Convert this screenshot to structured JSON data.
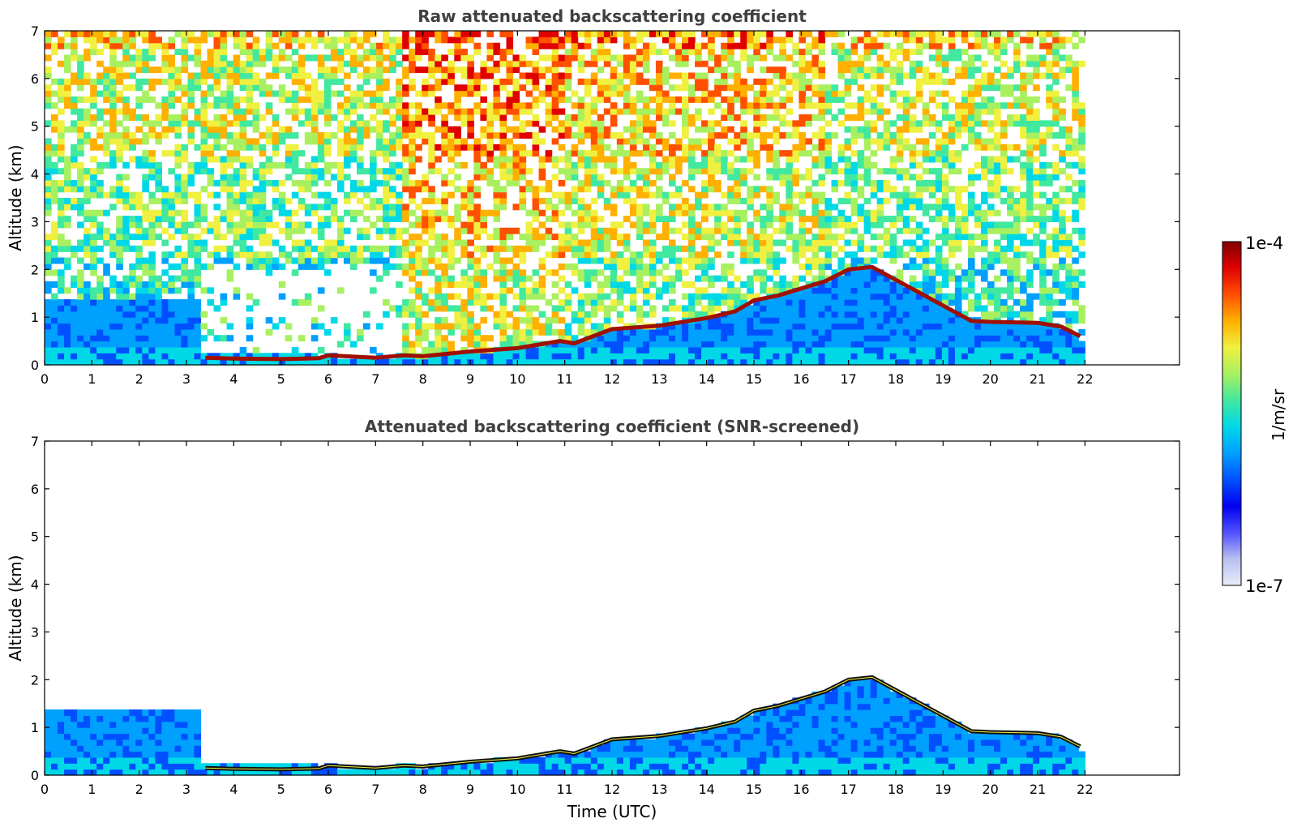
{
  "figure": {
    "xlabel": "Time (UTC)",
    "colorbar": {
      "label": "1/m/sr",
      "max_label": "1e-4",
      "min_label": "1e-7",
      "range": [
        1e-07,
        0.0001
      ],
      "scale": "log",
      "colormap": [
        "#e8ecf8",
        "#b8c0f0",
        "#5050ff",
        "#0000f0",
        "#0050ff",
        "#00a0ff",
        "#00d8e8",
        "#40e8a0",
        "#a8f060",
        "#f0f040",
        "#ffb000",
        "#ff5000",
        "#e00000",
        "#800000"
      ]
    }
  },
  "chart_data": [
    {
      "type": "heatmap",
      "title": "Raw attenuated backscattering coefficient",
      "xlabel": "",
      "ylabel": "Altitude (km)",
      "xlim": [
        0,
        24
      ],
      "ylim": [
        0,
        7
      ],
      "data_extent_x": [
        0,
        22
      ],
      "xticks": [
        "0",
        "1",
        "2",
        "3",
        "4",
        "5",
        "6",
        "7",
        "8",
        "9",
        "10",
        "11",
        "12",
        "13",
        "14",
        "15",
        "16",
        "17",
        "18",
        "19",
        "20",
        "21",
        "22"
      ],
      "yticks": [
        "0",
        "1",
        "2",
        "3",
        "4",
        "5",
        "6",
        "7"
      ],
      "color_scale": "log, 1e-7 to 1e-4 1/m/sr",
      "cloud_layer": {
        "time": [
          0,
          1,
          2,
          3.2,
          3.4,
          4,
          5,
          5.8,
          6,
          7,
          7.6,
          8,
          9,
          10,
          10.9,
          11.2,
          12,
          13,
          14,
          14.6,
          15,
          15.5,
          16,
          16.5,
          17,
          17.5,
          19.6,
          20,
          21,
          21.5,
          21.9
        ],
        "altitude_km": [
          null,
          null,
          null,
          null,
          0.15,
          0.13,
          0.12,
          0.14,
          0.2,
          0.15,
          0.2,
          0.18,
          0.28,
          0.35,
          0.5,
          0.45,
          0.75,
          0.82,
          0.98,
          1.12,
          1.35,
          1.45,
          1.6,
          1.75,
          2.0,
          2.05,
          0.92,
          0.9,
          0.88,
          0.8,
          0.6
        ]
      }
    },
    {
      "type": "heatmap",
      "title": "Attenuated backscattering coefficient (SNR-screened)",
      "xlabel": "Time (UTC)",
      "ylabel": "Altitude (km)",
      "xlim": [
        0,
        24
      ],
      "ylim": [
        0,
        7
      ],
      "data_extent_x": [
        0,
        22
      ],
      "xticks": [
        "0",
        "1",
        "2",
        "3",
        "4",
        "5",
        "6",
        "7",
        "8",
        "9",
        "10",
        "11",
        "12",
        "13",
        "14",
        "15",
        "16",
        "17",
        "18",
        "19",
        "20",
        "21",
        "22"
      ],
      "yticks": [
        "0",
        "1",
        "2",
        "3",
        "4",
        "5",
        "6",
        "7"
      ],
      "color_scale": "log, 1e-7 to 1e-4 1/m/sr"
    }
  ]
}
